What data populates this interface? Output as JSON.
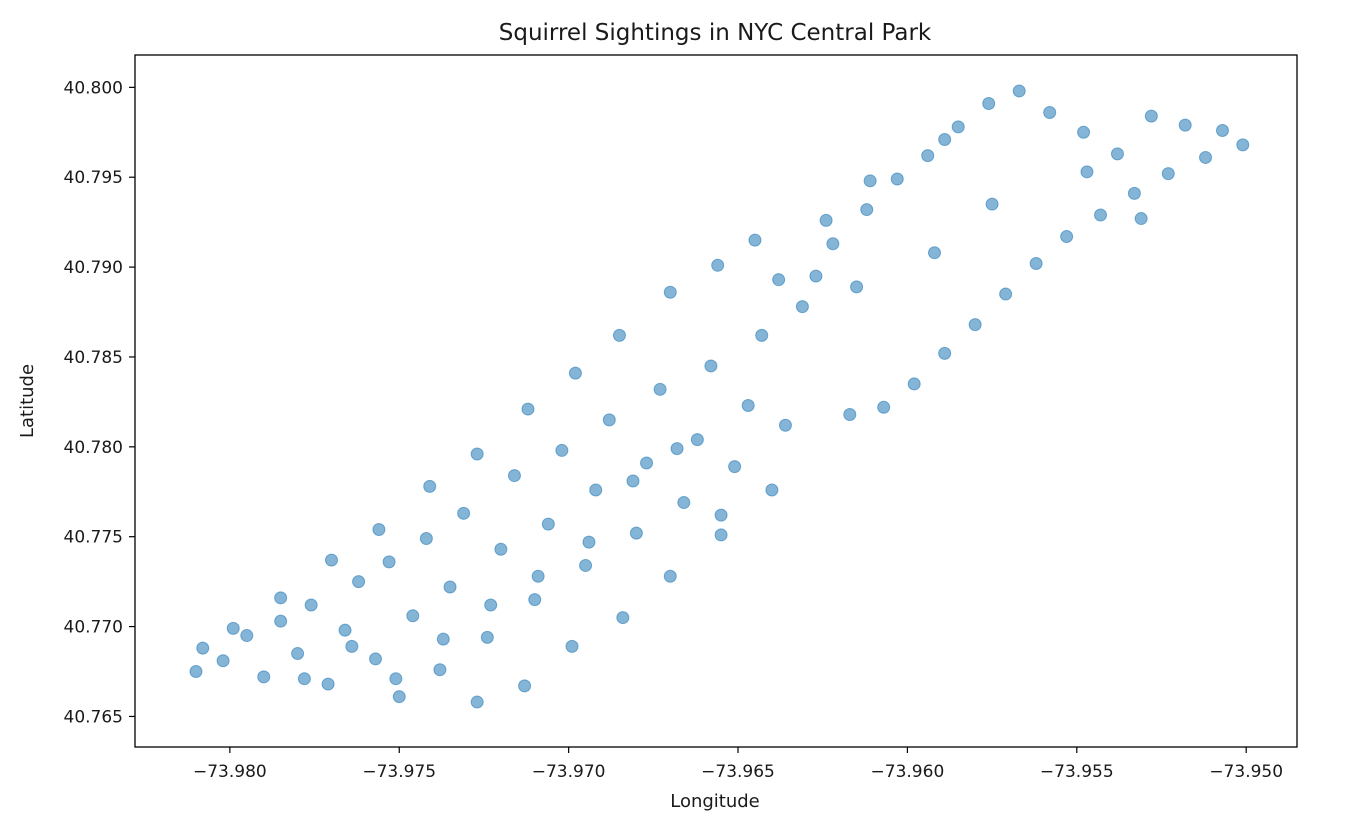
{
  "chart_data": {
    "type": "scatter",
    "title": "Squirrel Sightings in NYC Central Park",
    "xlabel": "Longitude",
    "ylabel": "Latitude",
    "xlim": [
      -73.9828,
      -73.9485
    ],
    "ylim": [
      40.7633,
      40.8018
    ],
    "xticks": [
      -73.98,
      -73.975,
      -73.97,
      -73.965,
      -73.96,
      -73.955,
      -73.95
    ],
    "yticks": [
      40.765,
      40.77,
      40.775,
      40.78,
      40.785,
      40.79,
      40.795,
      40.8
    ],
    "xtick_labels": [
      "−73.980",
      "−73.975",
      "−73.970",
      "−73.965",
      "−73.960",
      "−73.955",
      "−73.950"
    ],
    "ytick_labels": [
      "40.765",
      "40.770",
      "40.775",
      "40.780",
      "40.785",
      "40.790",
      "40.795",
      "40.800"
    ],
    "grid": false,
    "marker_color": "#1f77b4",
    "marker_alpha": 0.55,
    "series": [
      {
        "points": [
          [
            -73.981,
            40.7675
          ],
          [
            -73.9808,
            40.7688
          ],
          [
            -73.9802,
            40.7681
          ],
          [
            -73.9795,
            40.7695
          ],
          [
            -73.979,
            40.7672
          ],
          [
            -73.9785,
            40.7703
          ],
          [
            -73.978,
            40.7685
          ],
          [
            -73.9776,
            40.7712
          ],
          [
            -73.9771,
            40.7668
          ],
          [
            -73.9766,
            40.7698
          ],
          [
            -73.9762,
            40.7725
          ],
          [
            -73.9757,
            40.7682
          ],
          [
            -73.9753,
            40.7736
          ],
          [
            -73.975,
            40.7661
          ],
          [
            -73.9746,
            40.7706
          ],
          [
            -73.9742,
            40.7749
          ],
          [
            -73.9738,
            40.7676
          ],
          [
            -73.9735,
            40.7722
          ],
          [
            -73.9731,
            40.7763
          ],
          [
            -73.9727,
            40.7658
          ],
          [
            -73.9724,
            40.7694
          ],
          [
            -73.972,
            40.7743
          ],
          [
            -73.9716,
            40.7784
          ],
          [
            -73.9713,
            40.7667
          ],
          [
            -73.971,
            40.7715
          ],
          [
            -73.9706,
            40.7757
          ],
          [
            -73.9702,
            40.7798
          ],
          [
            -73.9699,
            40.7689
          ],
          [
            -73.9695,
            40.7734
          ],
          [
            -73.9692,
            40.7776
          ],
          [
            -73.9688,
            40.7815
          ],
          [
            -73.9684,
            40.7705
          ],
          [
            -73.968,
            40.7752
          ],
          [
            -73.9677,
            40.7791
          ],
          [
            -73.9673,
            40.7832
          ],
          [
            -73.967,
            40.7728
          ],
          [
            -73.9666,
            40.7769
          ],
          [
            -73.9662,
            40.7804
          ],
          [
            -73.9658,
            40.7845
          ],
          [
            -73.9655,
            40.7751
          ],
          [
            -73.9651,
            40.7789
          ],
          [
            -73.9647,
            40.7823
          ],
          [
            -73.9643,
            40.7862
          ],
          [
            -73.964,
            40.7776
          ],
          [
            -73.9636,
            40.7812
          ],
          [
            -73.9631,
            40.7878
          ],
          [
            -73.9627,
            40.7895
          ],
          [
            -73.9622,
            40.7913
          ],
          [
            -73.9617,
            40.7818
          ],
          [
            -73.9612,
            40.7932
          ],
          [
            -73.9607,
            40.7822
          ],
          [
            -73.9603,
            40.7949
          ],
          [
            -73.9598,
            40.7835
          ],
          [
            -73.9594,
            40.7962
          ],
          [
            -73.9589,
            40.7852
          ],
          [
            -73.9585,
            40.7978
          ],
          [
            -73.958,
            40.7868
          ],
          [
            -73.9576,
            40.7991
          ],
          [
            -73.9571,
            40.7885
          ],
          [
            -73.9567,
            40.7998
          ],
          [
            -73.9562,
            40.7902
          ],
          [
            -73.9558,
            40.7986
          ],
          [
            -73.9553,
            40.7917
          ],
          [
            -73.9548,
            40.7975
          ],
          [
            -73.9543,
            40.7929
          ],
          [
            -73.9538,
            40.7963
          ],
          [
            -73.9533,
            40.7941
          ],
          [
            -73.9528,
            40.7984
          ],
          [
            -73.9523,
            40.7952
          ],
          [
            -73.9518,
            40.7979
          ],
          [
            -73.9512,
            40.7961
          ],
          [
            -73.9507,
            40.7976
          ],
          [
            -73.9501,
            40.7968
          ],
          [
            -73.9575,
            40.7935
          ],
          [
            -73.9592,
            40.7908
          ],
          [
            -73.9615,
            40.7889
          ],
          [
            -73.9638,
            40.7893
          ],
          [
            -73.9656,
            40.7901
          ],
          [
            -73.967,
            40.7886
          ],
          [
            -73.9685,
            40.7862
          ],
          [
            -73.9698,
            40.7841
          ],
          [
            -73.9712,
            40.7821
          ],
          [
            -73.9727,
            40.7796
          ],
          [
            -73.9741,
            40.7778
          ],
          [
            -73.9756,
            40.7754
          ],
          [
            -73.977,
            40.7737
          ],
          [
            -73.9785,
            40.7716
          ],
          [
            -73.9799,
            40.7699
          ],
          [
            -73.9611,
            40.7948
          ],
          [
            -73.9624,
            40.7926
          ],
          [
            -73.9645,
            40.7915
          ],
          [
            -73.9589,
            40.7971
          ],
          [
            -73.9547,
            40.7953
          ],
          [
            -73.9531,
            40.7927
          ],
          [
            -73.9668,
            40.7799
          ],
          [
            -73.9681,
            40.7781
          ],
          [
            -73.9655,
            40.7762
          ],
          [
            -73.9694,
            40.7747
          ],
          [
            -73.9709,
            40.7728
          ],
          [
            -73.9723,
            40.7712
          ],
          [
            -73.9737,
            40.7693
          ],
          [
            -73.9751,
            40.7671
          ],
          [
            -73.9764,
            40.7689
          ],
          [
            -73.9778,
            40.7671
          ]
        ]
      }
    ]
  }
}
